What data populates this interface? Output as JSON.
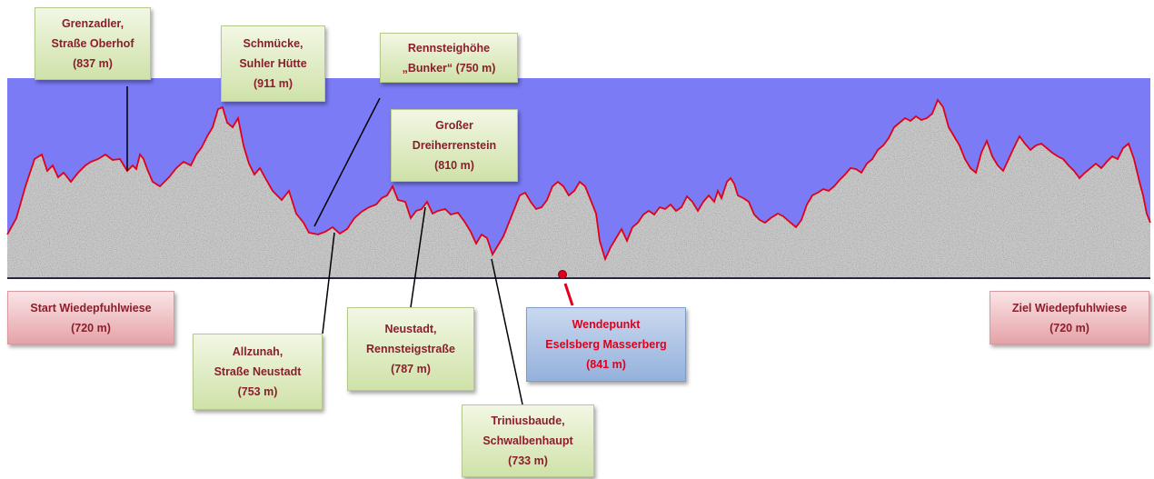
{
  "colors": {
    "sky": "#7b7bf6",
    "terrain": "#c8c8c8",
    "outline": "#e0001b",
    "baseline": "#000000",
    "arrow": "#000000",
    "turn_arrow": "#e0001b"
  },
  "labels": {
    "grenzadler": {
      "line1": "Grenzadler,",
      "line2": "Straße Oberhof",
      "line3": "(837 m)"
    },
    "schmuecke": {
      "line1": "Schmücke,",
      "line2": "Suhler Hütte",
      "line3": "(911 m)"
    },
    "rennsteighoehe": {
      "line1": "Rennsteighöhe",
      "line2": "„Bunker“ (750 m)"
    },
    "dreiherrenstein": {
      "line1": "Großer",
      "line2": "Dreiherrenstein",
      "line3": "(810 m)"
    },
    "start": {
      "line1": "Start Wiedepfuhlwiese",
      "line2": "(720 m)"
    },
    "ziel": {
      "line1": "Ziel Wiedepfuhlwiese",
      "line2": "(720 m)"
    },
    "allzunah": {
      "line1": "Allzunah,",
      "line2": "Straße Neustadt",
      "line3": "(753 m)"
    },
    "neustadt": {
      "line1": "Neustadt,",
      "line2": "Rennsteigstraße",
      "line3": "(787 m)"
    },
    "wendepunkt": {
      "line1": "Wendepunkt",
      "line2": "Eselsberg Masserberg",
      "line3": "(841 m)"
    },
    "triniusbaude": {
      "line1": "Triniusbaude,",
      "line2": "Schwalbenhaupt",
      "line3": "(733 m)"
    }
  }
}
